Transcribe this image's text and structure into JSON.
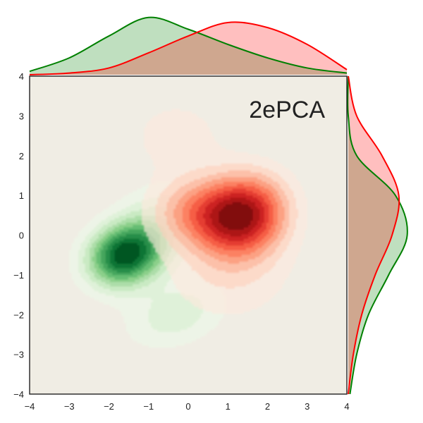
{
  "chart_data": {
    "type": "kde-joint",
    "title": "2ePCA",
    "xlim": [
      -4,
      4
    ],
    "ylim": [
      -4,
      4
    ],
    "xticks": [
      -4,
      -3,
      -2,
      -1,
      0,
      1,
      2,
      3,
      4
    ],
    "yticks": [
      -4,
      -3,
      -2,
      -1,
      0,
      1,
      2,
      3,
      4
    ],
    "grid": false,
    "background": "#f0ede4",
    "series": [
      {
        "color": "#008000",
        "colormap": "Greens",
        "components": [
          {
            "mx": -1.6,
            "my": -0.5,
            "sx": 0.65,
            "sy": 0.55,
            "rho": 0.15,
            "w": 0.55
          },
          {
            "mx": -0.5,
            "my": 0.3,
            "sx": 0.8,
            "sy": 0.7,
            "rho": 0.0,
            "w": 0.25
          },
          {
            "mx": -0.3,
            "my": -2.0,
            "sx": 0.9,
            "sy": 0.6,
            "rho": 0.3,
            "w": 0.2
          }
        ]
      },
      {
        "color": "#ff0000",
        "colormap": "Reds",
        "components": [
          {
            "mx": 1.4,
            "my": 0.5,
            "sx": 0.75,
            "sy": 0.7,
            "rho": 0.1,
            "w": 0.5
          },
          {
            "mx": 0.2,
            "my": 0.6,
            "sx": 0.8,
            "sy": 0.6,
            "rho": 0.0,
            "w": 0.2
          },
          {
            "mx": 1.0,
            "my": -1.0,
            "sx": 1.2,
            "sy": 0.9,
            "rho": 0.0,
            "w": 0.2
          },
          {
            "mx": -0.3,
            "my": 2.5,
            "sx": 0.9,
            "sy": 0.7,
            "rho": 0.0,
            "w": 0.1
          }
        ]
      }
    ],
    "x_marginal": [
      {
        "color": "#008000",
        "fill": "#008000",
        "x": [
          -4,
          -3,
          -2,
          -1,
          0,
          1,
          2,
          3,
          4
        ],
        "density": [
          0.02,
          0.1,
          0.23,
          0.34,
          0.27,
          0.18,
          0.1,
          0.04,
          0.01
        ]
      },
      {
        "color": "#ff0000",
        "fill": "#ff0000",
        "x": [
          -4,
          -3,
          -2,
          -1,
          0,
          1,
          2,
          3,
          4
        ],
        "density": [
          0.0,
          0.01,
          0.04,
          0.13,
          0.23,
          0.31,
          0.28,
          0.18,
          0.03
        ]
      }
    ],
    "y_marginal": [
      {
        "color": "#008000",
        "fill": "#008000",
        "y": [
          4,
          3,
          2,
          1,
          0,
          -1,
          -2,
          -3,
          -4
        ],
        "density": [
          0.0,
          0.0,
          0.05,
          0.28,
          0.35,
          0.24,
          0.12,
          0.05,
          0.01
        ]
      },
      {
        "color": "#ff0000",
        "fill": "#ff0000",
        "y": [
          4,
          3,
          2,
          1,
          0,
          -1,
          -2,
          -3,
          -4
        ],
        "density": [
          0.0,
          0.05,
          0.2,
          0.3,
          0.26,
          0.16,
          0.08,
          0.03,
          0.0
        ]
      }
    ]
  }
}
